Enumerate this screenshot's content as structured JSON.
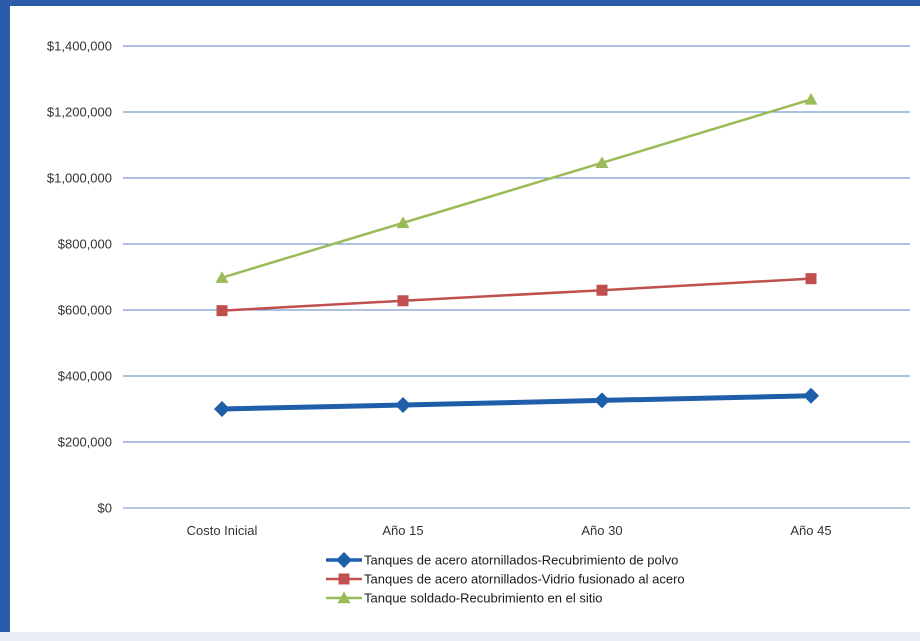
{
  "chart_data": {
    "type": "line",
    "title": "",
    "xlabel": "",
    "ylabel": "",
    "categories": [
      "Costo Inicial",
      "Año 15",
      "Año 30",
      "Año 45"
    ],
    "ylim": [
      0,
      1400000
    ],
    "yticks": [
      "$0",
      "$200,000",
      "$400,000",
      "$600,000",
      "$800,000",
      "$1,000,000",
      "$1,200,000",
      "$1,400,000"
    ],
    "grid": true,
    "legend_position": "bottom",
    "series": [
      {
        "name": "Tanques de acero atornillados-Recubrimiento de polvo",
        "values": [
          300000,
          312000,
          326000,
          340000
        ],
        "color": "#1f5faa",
        "marker": "diamond"
      },
      {
        "name": "Tanques de acero atornillados-Vidrio fusionado al acero",
        "values": [
          598000,
          628000,
          660000,
          695000
        ],
        "color": "#c0504d",
        "marker": "square"
      },
      {
        "name": "Tanque soldado-Recubrimiento en el sitio",
        "values": [
          698000,
          864000,
          1046000,
          1238000
        ],
        "color": "#9bbb59",
        "marker": "triangle"
      }
    ]
  }
}
